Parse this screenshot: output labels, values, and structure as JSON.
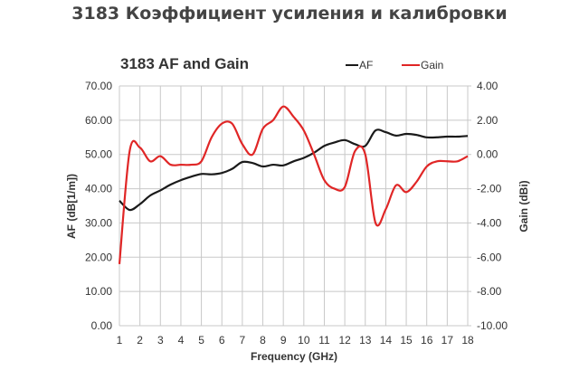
{
  "page": {
    "heading": "3183 Коэффициент усиления и калибровки"
  },
  "colors": {
    "af": "#1a1a1a",
    "gain": "#e02626",
    "grid": "#c8c8c8",
    "text": "#333333"
  },
  "chart_data": {
    "type": "line",
    "title": "3183 AF and Gain",
    "xlabel": "Frequency (GHz)",
    "ylabel": "AF (dB[1/m])",
    "y2label": "Gain (dBi)",
    "xlim": [
      1,
      18
    ],
    "ylim": [
      0,
      70
    ],
    "y2lim": [
      -10,
      4
    ],
    "grid": true,
    "legend_position": "top-right",
    "x_ticks": [
      "1",
      "2",
      "3",
      "4",
      "5",
      "6",
      "7",
      "8",
      "9",
      "10",
      "11",
      "12",
      "13",
      "14",
      "15",
      "16",
      "17",
      "18"
    ],
    "y_ticks": [
      "0.00",
      "10.00",
      "20.00",
      "30.00",
      "40.00",
      "50.00",
      "60.00",
      "70.00"
    ],
    "y2_ticks": [
      "-10.00",
      "-8.00",
      "-6.00",
      "-4.00",
      "-2.00",
      "0.00",
      "2.00",
      "4.00"
    ],
    "x": [
      1,
      1.5,
      2,
      2.5,
      3,
      3.5,
      4,
      4.5,
      5,
      5.5,
      6,
      6.5,
      7,
      7.5,
      8,
      8.5,
      9,
      9.5,
      10,
      10.5,
      11,
      11.5,
      12,
      12.5,
      13,
      13.5,
      14,
      14.5,
      15,
      15.5,
      16,
      16.5,
      17,
      17.5,
      18
    ],
    "series": [
      {
        "name": "AF",
        "axis": "left",
        "values": [
          36.5,
          33.8,
          35.5,
          38.0,
          39.5,
          41.2,
          42.5,
          43.5,
          44.3,
          44.2,
          44.6,
          45.8,
          47.8,
          47.5,
          46.5,
          47.0,
          46.8,
          48.0,
          49.0,
          50.5,
          52.5,
          53.5,
          54.2,
          53.0,
          52.5,
          57.0,
          56.5,
          55.5,
          56.0,
          55.7,
          55.0,
          55.0,
          55.2,
          55.2,
          55.4
        ]
      },
      {
        "name": "Gain",
        "axis": "right",
        "values": [
          -6.4,
          0.2,
          0.4,
          -0.4,
          -0.1,
          -0.6,
          -0.6,
          -0.6,
          -0.4,
          1.0,
          1.8,
          1.8,
          0.6,
          0.0,
          1.5,
          2.0,
          2.8,
          2.2,
          1.4,
          0.0,
          -1.5,
          -2.0,
          -1.9,
          0.2,
          0.0,
          -4.0,
          -3.2,
          -1.8,
          -2.2,
          -1.6,
          -0.7,
          -0.4,
          -0.4,
          -0.4,
          -0.1
        ]
      }
    ]
  }
}
